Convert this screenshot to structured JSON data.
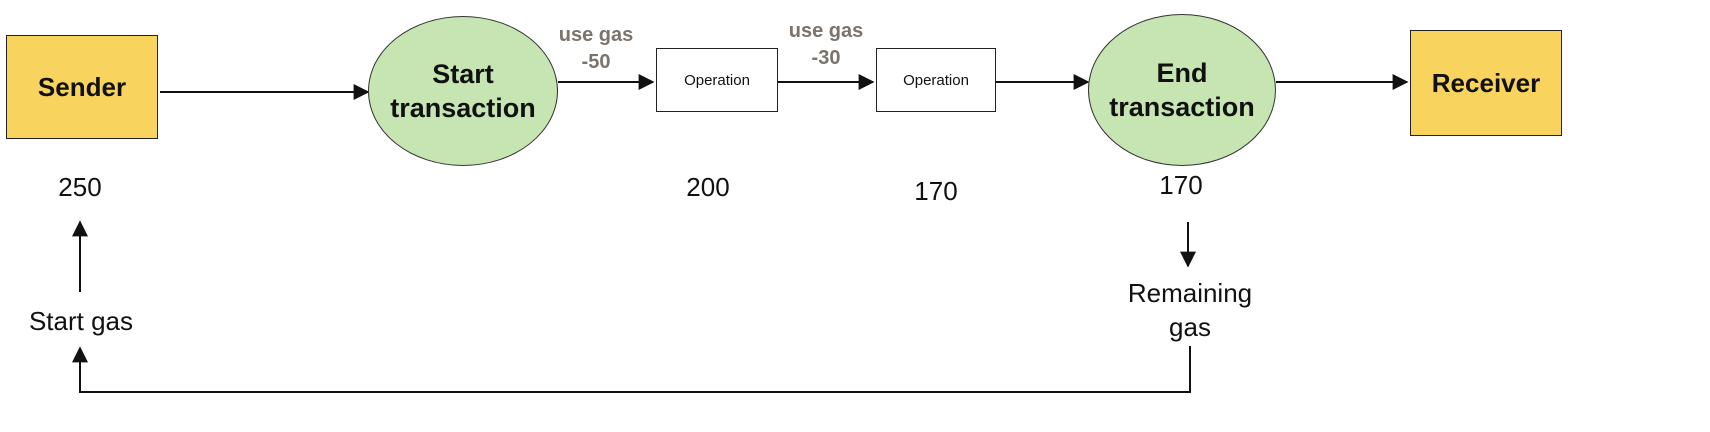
{
  "nodes": {
    "sender": "Sender",
    "start_transaction": [
      "Start",
      "transaction"
    ],
    "operation_1": "Operation",
    "operation_2": "Operation",
    "end_transaction": [
      "End",
      "transaction"
    ],
    "receiver": "Receiver"
  },
  "gas_use": [
    {
      "line1": "use gas",
      "line2": "-50"
    },
    {
      "line1": "use gas",
      "line2": "-30"
    }
  ],
  "values": {
    "sender_gas": "250",
    "after_operation_1": "200",
    "after_operation_2": "170",
    "end_gas": "170"
  },
  "annotations": {
    "start_gas": "Start gas",
    "remaining_gas": [
      "Remaining",
      "gas"
    ]
  },
  "colors": {
    "sender_fill": "#f8d35e",
    "transaction_fill": "#c7e5b3",
    "gas_label": "#7a746c"
  }
}
